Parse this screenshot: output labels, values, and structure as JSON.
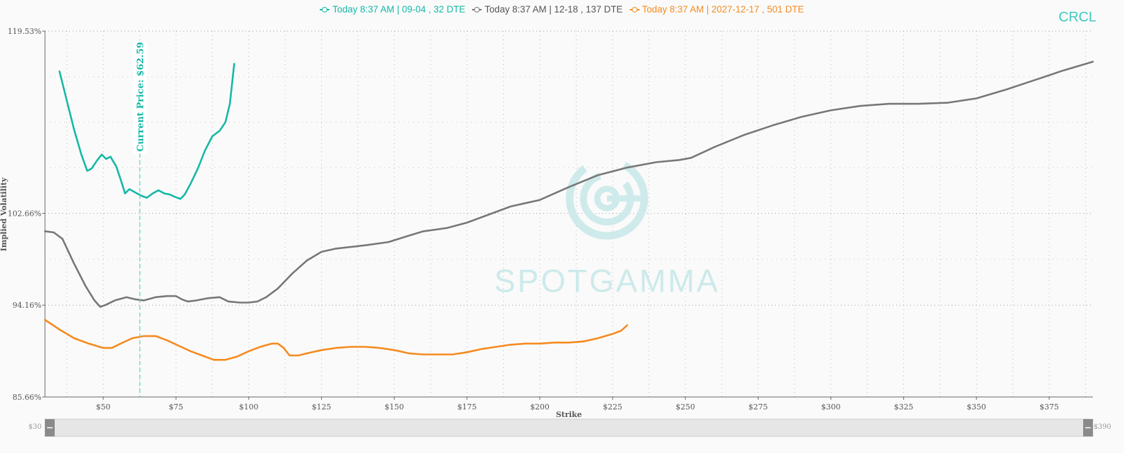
{
  "ticker": "CRCL",
  "watermark": "SPOTGAMMA",
  "colors": {
    "teal": "#14b8a6",
    "gray": "#777777",
    "orange": "#f68a1e"
  },
  "slider": {
    "min_label": "$30",
    "max_label": "$390"
  },
  "chart_data": {
    "type": "line",
    "xlabel": "Strike",
    "ylabel": "Implied Volatility",
    "xlim": [
      30,
      390
    ],
    "ylim": [
      85.66,
      119.53
    ],
    "x_ticks": [
      50,
      75,
      100,
      125,
      150,
      175,
      200,
      225,
      250,
      275,
      300,
      325,
      350,
      375
    ],
    "x_tick_labels": [
      "$50",
      "$75",
      "$100",
      "$125",
      "$150",
      "$175",
      "$200",
      "$225",
      "$250",
      "$275",
      "$300",
      "$325",
      "$350",
      "$375"
    ],
    "y_ticks": [
      85.66,
      94.16,
      102.66,
      119.53
    ],
    "y_tick_labels": [
      "85.66%",
      "94.16%",
      "102.66%",
      "119.53%"
    ],
    "grid": true,
    "legend_position": "top-center",
    "annotation": {
      "label": "Current Price: $62.59",
      "x": 62.59
    },
    "series": [
      {
        "name": "Today 8:37 AM | 09-04 , 32 DTE",
        "color": "#14b8a6",
        "points": [
          [
            35,
            115.8
          ],
          [
            37.5,
            113.1
          ],
          [
            40,
            110.4
          ],
          [
            42.5,
            108.1
          ],
          [
            44.5,
            106.6
          ],
          [
            46,
            106.8
          ],
          [
            48,
            107.6
          ],
          [
            49.5,
            108.1
          ],
          [
            51,
            107.7
          ],
          [
            52.5,
            107.9
          ],
          [
            54.5,
            107.0
          ],
          [
            56,
            105.8
          ],
          [
            57.5,
            104.5
          ],
          [
            59,
            104.9
          ],
          [
            61,
            104.6
          ],
          [
            63,
            104.3
          ],
          [
            65,
            104.1
          ],
          [
            67,
            104.5
          ],
          [
            69,
            104.8
          ],
          [
            71,
            104.5
          ],
          [
            73,
            104.4
          ],
          [
            74.5,
            104.2
          ],
          [
            76.5,
            104.0
          ],
          [
            78,
            104.4
          ],
          [
            80,
            105.4
          ],
          [
            82.5,
            106.8
          ],
          [
            85,
            108.5
          ],
          [
            87.5,
            109.8
          ],
          [
            90,
            110.3
          ],
          [
            92,
            111.1
          ],
          [
            93.5,
            112.8
          ],
          [
            95,
            116.5
          ]
        ]
      },
      {
        "name": "Today 8:37 AM | 12-18 , 137 DTE",
        "color": "#777777",
        "points": [
          [
            30,
            101.0
          ],
          [
            33,
            100.9
          ],
          [
            36,
            100.3
          ],
          [
            40,
            98.0
          ],
          [
            44,
            95.9
          ],
          [
            47,
            94.6
          ],
          [
            49,
            94.0
          ],
          [
            51,
            94.2
          ],
          [
            54,
            94.6
          ],
          [
            58,
            94.9
          ],
          [
            61,
            94.7
          ],
          [
            64,
            94.6
          ],
          [
            68,
            94.9
          ],
          [
            72,
            95.0
          ],
          [
            75,
            95.0
          ],
          [
            77,
            94.7
          ],
          [
            79,
            94.5
          ],
          [
            82,
            94.6
          ],
          [
            86,
            94.8
          ],
          [
            90,
            94.9
          ],
          [
            93,
            94.5
          ],
          [
            97,
            94.4
          ],
          [
            100,
            94.4
          ],
          [
            103,
            94.5
          ],
          [
            106,
            94.9
          ],
          [
            110,
            95.7
          ],
          [
            115,
            97.1
          ],
          [
            120,
            98.3
          ],
          [
            125,
            99.1
          ],
          [
            130,
            99.4
          ],
          [
            140,
            99.7
          ],
          [
            148,
            100.0
          ],
          [
            155,
            100.6
          ],
          [
            160,
            101.0
          ],
          [
            168,
            101.3
          ],
          [
            175,
            101.8
          ],
          [
            182,
            102.5
          ],
          [
            190,
            103.3
          ],
          [
            200,
            103.9
          ],
          [
            210,
            105.1
          ],
          [
            220,
            106.2
          ],
          [
            230,
            106.9
          ],
          [
            240,
            107.4
          ],
          [
            248,
            107.6
          ],
          [
            252,
            107.8
          ],
          [
            260,
            108.8
          ],
          [
            270,
            109.9
          ],
          [
            280,
            110.8
          ],
          [
            290,
            111.6
          ],
          [
            300,
            112.2
          ],
          [
            310,
            112.6
          ],
          [
            320,
            112.8
          ],
          [
            330,
            112.8
          ],
          [
            340,
            112.9
          ],
          [
            350,
            113.3
          ],
          [
            360,
            114.1
          ],
          [
            370,
            115.0
          ],
          [
            380,
            115.9
          ],
          [
            390,
            116.7
          ]
        ]
      },
      {
        "name": "Today 8:37 AM | 2027-12-17 , 501 DTE",
        "color": "#f68a1e",
        "points": [
          [
            30,
            92.8
          ],
          [
            35,
            91.9
          ],
          [
            40,
            91.1
          ],
          [
            45,
            90.6
          ],
          [
            50,
            90.2
          ],
          [
            53,
            90.2
          ],
          [
            56,
            90.6
          ],
          [
            60,
            91.1
          ],
          [
            64,
            91.3
          ],
          [
            68,
            91.3
          ],
          [
            72,
            90.9
          ],
          [
            76,
            90.4
          ],
          [
            80,
            89.9
          ],
          [
            85,
            89.4
          ],
          [
            88,
            89.1
          ],
          [
            92,
            89.1
          ],
          [
            96,
            89.4
          ],
          [
            100,
            89.9
          ],
          [
            104,
            90.3
          ],
          [
            108,
            90.6
          ],
          [
            110,
            90.6
          ],
          [
            112,
            90.2
          ],
          [
            114,
            89.5
          ],
          [
            117,
            89.5
          ],
          [
            120,
            89.7
          ],
          [
            125,
            90.0
          ],
          [
            130,
            90.2
          ],
          [
            135,
            90.3
          ],
          [
            140,
            90.3
          ],
          [
            145,
            90.2
          ],
          [
            150,
            90.0
          ],
          [
            155,
            89.7
          ],
          [
            160,
            89.6
          ],
          [
            165,
            89.6
          ],
          [
            170,
            89.6
          ],
          [
            175,
            89.8
          ],
          [
            180,
            90.1
          ],
          [
            185,
            90.3
          ],
          [
            190,
            90.5
          ],
          [
            195,
            90.6
          ],
          [
            200,
            90.6
          ],
          [
            205,
            90.7
          ],
          [
            210,
            90.7
          ],
          [
            215,
            90.8
          ],
          [
            220,
            91.1
          ],
          [
            225,
            91.5
          ],
          [
            228,
            91.8
          ],
          [
            230,
            92.3
          ]
        ]
      }
    ]
  }
}
